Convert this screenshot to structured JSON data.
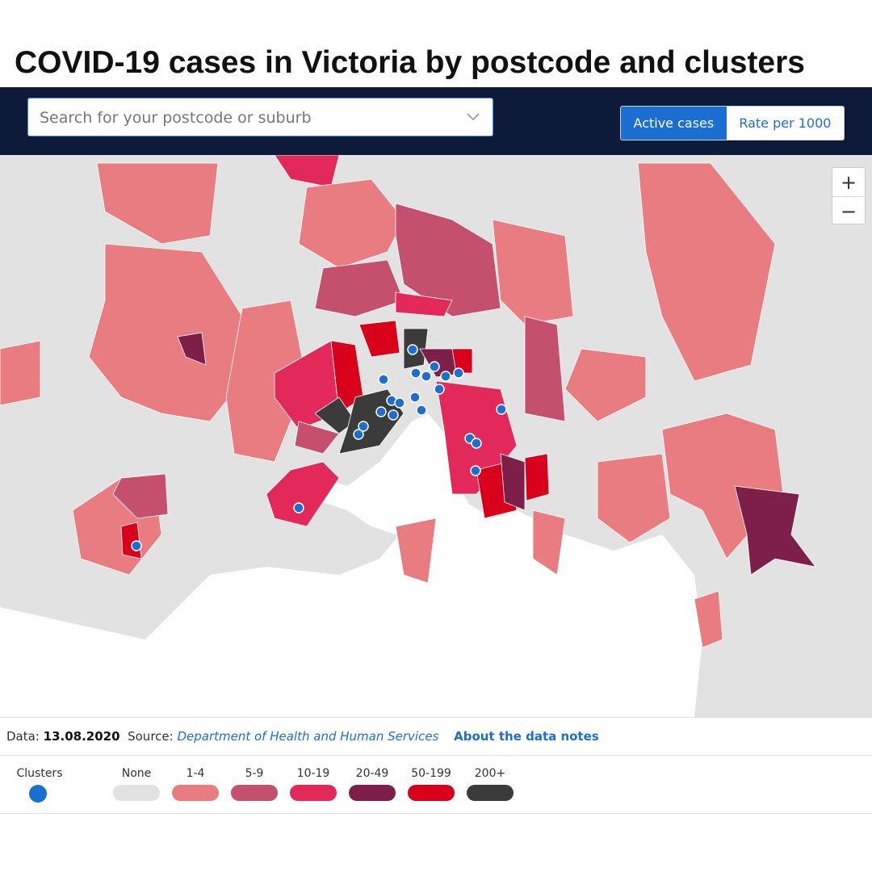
{
  "title": "COVID-19 cases in Victoria by postcode and clusters",
  "search": {
    "placeholder": "Search for your postcode or suburb"
  },
  "toggle": {
    "options": [
      "Active cases",
      "Rate per 1000"
    ],
    "selected": 0
  },
  "zoom": [
    "+",
    "−"
  ],
  "footer": {
    "data_label": "Data:",
    "date": "13.08.2020",
    "source_label": "Source:",
    "source": "Department of Health and Human Services",
    "notes_link": "About the data notes"
  },
  "legend": {
    "clusters": {
      "label": "Clusters",
      "color": "#1a6fd1"
    },
    "items": [
      {
        "label": "None",
        "color": "#e2e2e2"
      },
      {
        "label": "1-4",
        "color": "#e87c80"
      },
      {
        "label": "5-9",
        "color": "#c5506e"
      },
      {
        "label": "10-19",
        "color": "#e3285a"
      },
      {
        "label": "20-49",
        "color": "#7e1f4a"
      },
      {
        "label": "50-199",
        "color": "#d9001b"
      },
      {
        "label": "200+",
        "color": "#3b3b3b"
      }
    ]
  }
}
